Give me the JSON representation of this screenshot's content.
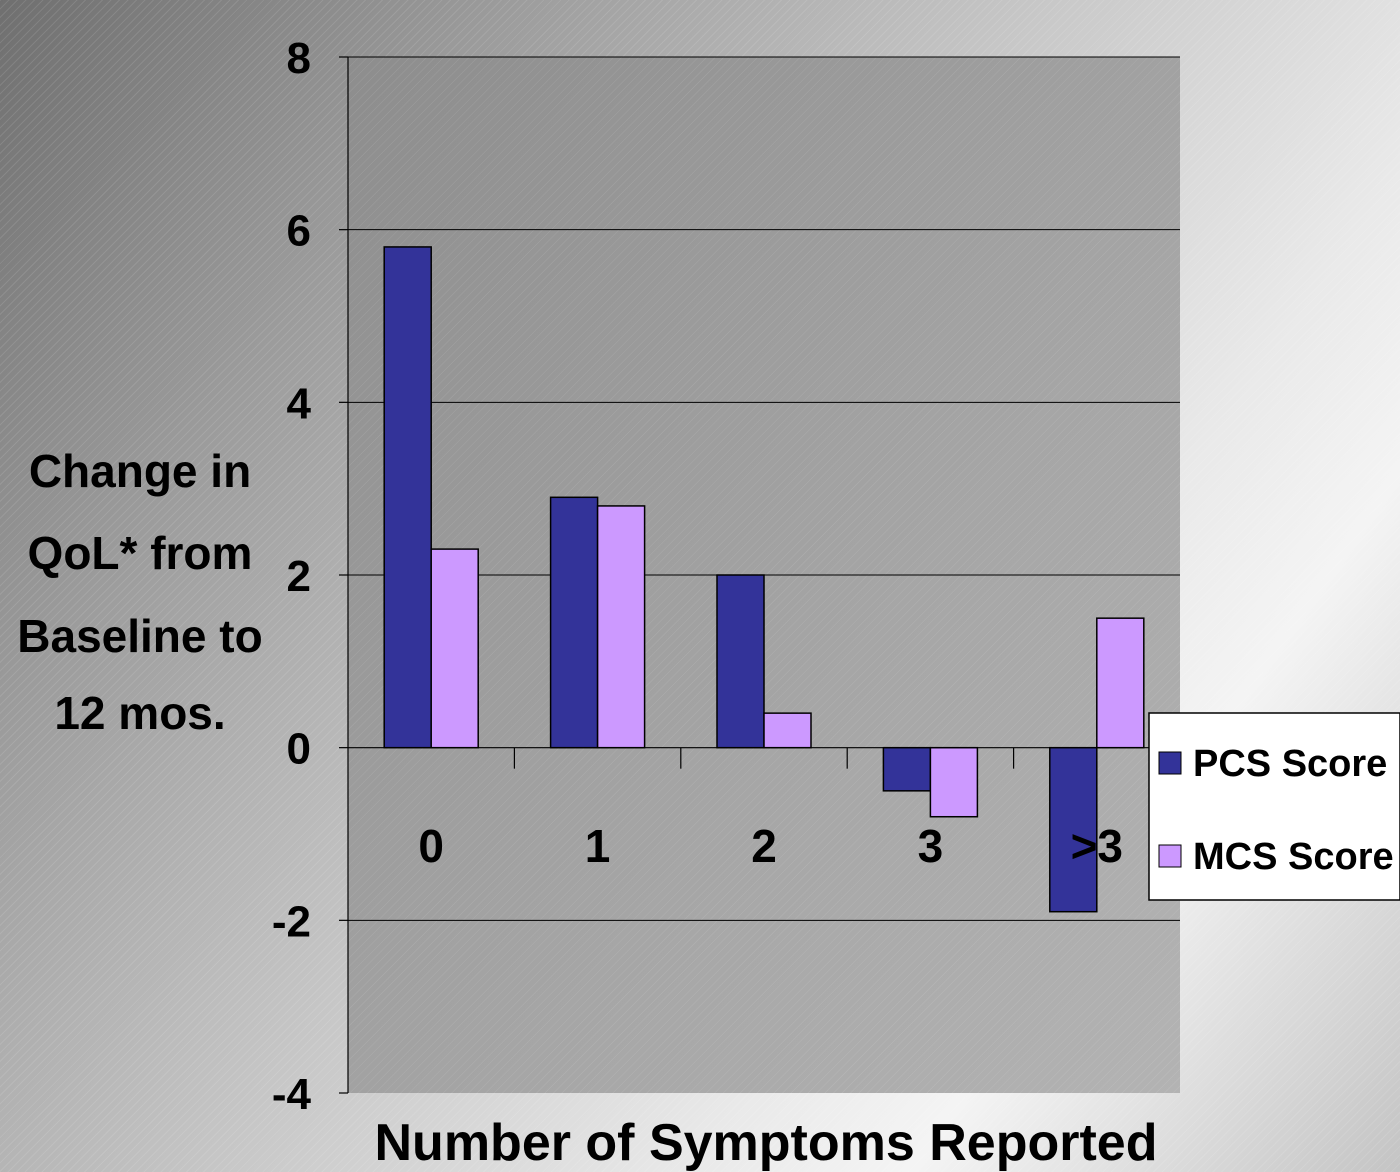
{
  "chart_data": {
    "type": "bar",
    "categories": [
      "0",
      "1",
      "2",
      "3",
      ">3"
    ],
    "series": [
      {
        "name": "PCS Score",
        "values": [
          5.8,
          2.9,
          2.0,
          -0.5,
          -1.9
        ]
      },
      {
        "name": "MCS Score",
        "values": [
          2.3,
          2.8,
          0.4,
          -0.8,
          1.5
        ]
      }
    ],
    "xlabel": "Number of Symptoms Reported",
    "ylabel": "Change in QoL* from Baseline to 12 mos.",
    "ylabel_lines": [
      "Change in",
      "QoL* from",
      "Baseline to",
      "12 mos."
    ],
    "ylim": [
      -4,
      8
    ],
    "yticks": [
      "8",
      "6",
      "4",
      "2",
      "0",
      "-2",
      "-4"
    ],
    "grid": true,
    "legend": "right",
    "colors": {
      "PCS Score": "#333399",
      "MCS Score": "#cc99ff"
    }
  }
}
